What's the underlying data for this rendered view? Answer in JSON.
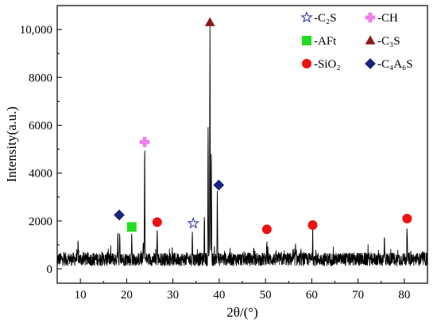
{
  "chart_data": {
    "type": "line",
    "xlabel": "2θ/(°)",
    "ylabel": "Intensity(a.u.)",
    "xlim": [
      5,
      85
    ],
    "ylim": [
      -600,
      11000
    ],
    "x_ticks": [
      10,
      20,
      30,
      40,
      50,
      60,
      70,
      80
    ],
    "x_tick_labels": [
      "10",
      "20",
      "30",
      "40",
      "50",
      "60",
      "70",
      "80"
    ],
    "y_ticks": [
      0,
      2000,
      4000,
      6000,
      8000,
      10000
    ],
    "y_tick_labels": [
      "0",
      "2000",
      "4000",
      "6000",
      "8000",
      "10,000"
    ],
    "grid": false,
    "legend_position": "top-right",
    "colors": {
      "pattern": "#000000",
      "C2S": "#3b3bb5",
      "CH": "#f080f0",
      "AFt": "#22dd22",
      "C3S": "#8b1a1a",
      "SiO2": "#ee1111",
      "C4A6S": "#1a237e"
    },
    "legend": [
      {
        "key": "C2S",
        "marker": "star-outline"
      },
      {
        "key": "CH",
        "marker": "cross"
      },
      {
        "key": "AFt",
        "marker": "square"
      },
      {
        "key": "C3S",
        "marker": "triangle"
      },
      {
        "key": "SiO2",
        "marker": "circle"
      },
      {
        "key": "C4A6S",
        "marker": "diamond"
      }
    ],
    "legend_labels": {
      "C2S": "-C₂S",
      "CH": "-CH",
      "AFt": "-AFt",
      "C3S": "-C₃S",
      "SiO2": "-SiO₂",
      "C4A6S": "-C₄A₆S"
    },
    "baseline": 400,
    "noise_amplitude": 340,
    "peaks": [
      {
        "x": 9.5,
        "y": 1000
      },
      {
        "x": 16.0,
        "y": 900
      },
      {
        "x": 18.1,
        "y": 1700
      },
      {
        "x": 18.5,
        "y": 1350
      },
      {
        "x": 21.1,
        "y": 1400
      },
      {
        "x": 23.6,
        "y": 1100
      },
      {
        "x": 23.9,
        "y": 5100
      },
      {
        "x": 26.6,
        "y": 1650
      },
      {
        "x": 34.2,
        "y": 1500
      },
      {
        "x": 36.8,
        "y": 2300
      },
      {
        "x": 37.6,
        "y": 6100
      },
      {
        "x": 38.0,
        "y": 10200
      },
      {
        "x": 38.3,
        "y": 4900
      },
      {
        "x": 39.6,
        "y": 3200
      },
      {
        "x": 47.5,
        "y": 900
      },
      {
        "x": 50.3,
        "y": 1350
      },
      {
        "x": 56.5,
        "y": 900
      },
      {
        "x": 60.2,
        "y": 1500
      },
      {
        "x": 75.7,
        "y": 1250
      },
      {
        "x": 80.6,
        "y": 1800
      }
    ],
    "markers": [
      {
        "phase": "C4A6S",
        "x": 18.4,
        "y": 2250
      },
      {
        "phase": "AFt",
        "x": 21.1,
        "y": 1750
      },
      {
        "phase": "CH",
        "x": 23.9,
        "y": 5300
      },
      {
        "phase": "SiO2",
        "x": 26.6,
        "y": 1950
      },
      {
        "phase": "C2S",
        "x": 34.4,
        "y": 1900
      },
      {
        "phase": "C3S",
        "x": 38.0,
        "y": 10300
      },
      {
        "phase": "C4A6S",
        "x": 39.9,
        "y": 3500
      },
      {
        "phase": "SiO2",
        "x": 50.3,
        "y": 1650
      },
      {
        "phase": "SiO2",
        "x": 60.2,
        "y": 1830
      },
      {
        "phase": "SiO2",
        "x": 80.6,
        "y": 2100
      }
    ]
  }
}
